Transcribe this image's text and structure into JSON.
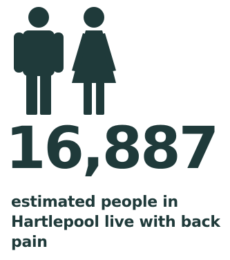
{
  "infographic": {
    "icon_color": "#1f3a3a",
    "icons": [
      "man-icon",
      "woman-icon"
    ],
    "stat_number": "16,887",
    "caption": "estimated people in Hartlepool live with back pain"
  }
}
